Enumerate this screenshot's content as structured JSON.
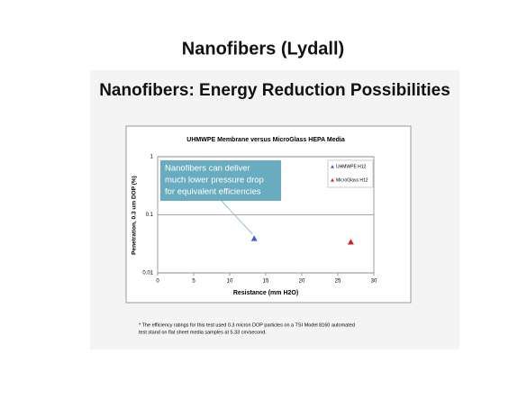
{
  "slide_title": "Nanofibers (Lydall)",
  "slide_subtitle": "Nanofibers: Energy Reduction Possibilities",
  "footnote": [
    "* The efficiency ratings for this test used 0.3 micron DOP particles on a TSI Model 8160 automated",
    "test stand on flat sheet media samples at 5.33 cm/second."
  ],
  "chart_data": {
    "type": "scatter",
    "title": "UHMWPE Membrane versus MicroGlass HEPA Media",
    "x_label": "Resistance (mm H2O)",
    "y_label": "Penetration, 0.3 um DOP (%)",
    "annotation": [
      "Nanofibers can deliver",
      "much lower pressure drop",
      "for equivalent efficiencies"
    ],
    "series": [
      {
        "name": "UHMWPE H12",
        "color": "#3a5fcd",
        "x": [
          13.4
        ],
        "values": [
          0.039
        ]
      },
      {
        "name": "MicroGlass H12",
        "color": "#d42020",
        "x": [
          26.8
        ],
        "values": [
          0.034
        ]
      }
    ],
    "xlim": [
      0,
      30
    ],
    "xticks": [
      0,
      5,
      10,
      15,
      20,
      25,
      30
    ],
    "ylim": [
      0.01,
      1
    ],
    "yticks": [
      0.01,
      0.1,
      1
    ],
    "y_log": true,
    "grid": true,
    "legend": "top-right"
  }
}
